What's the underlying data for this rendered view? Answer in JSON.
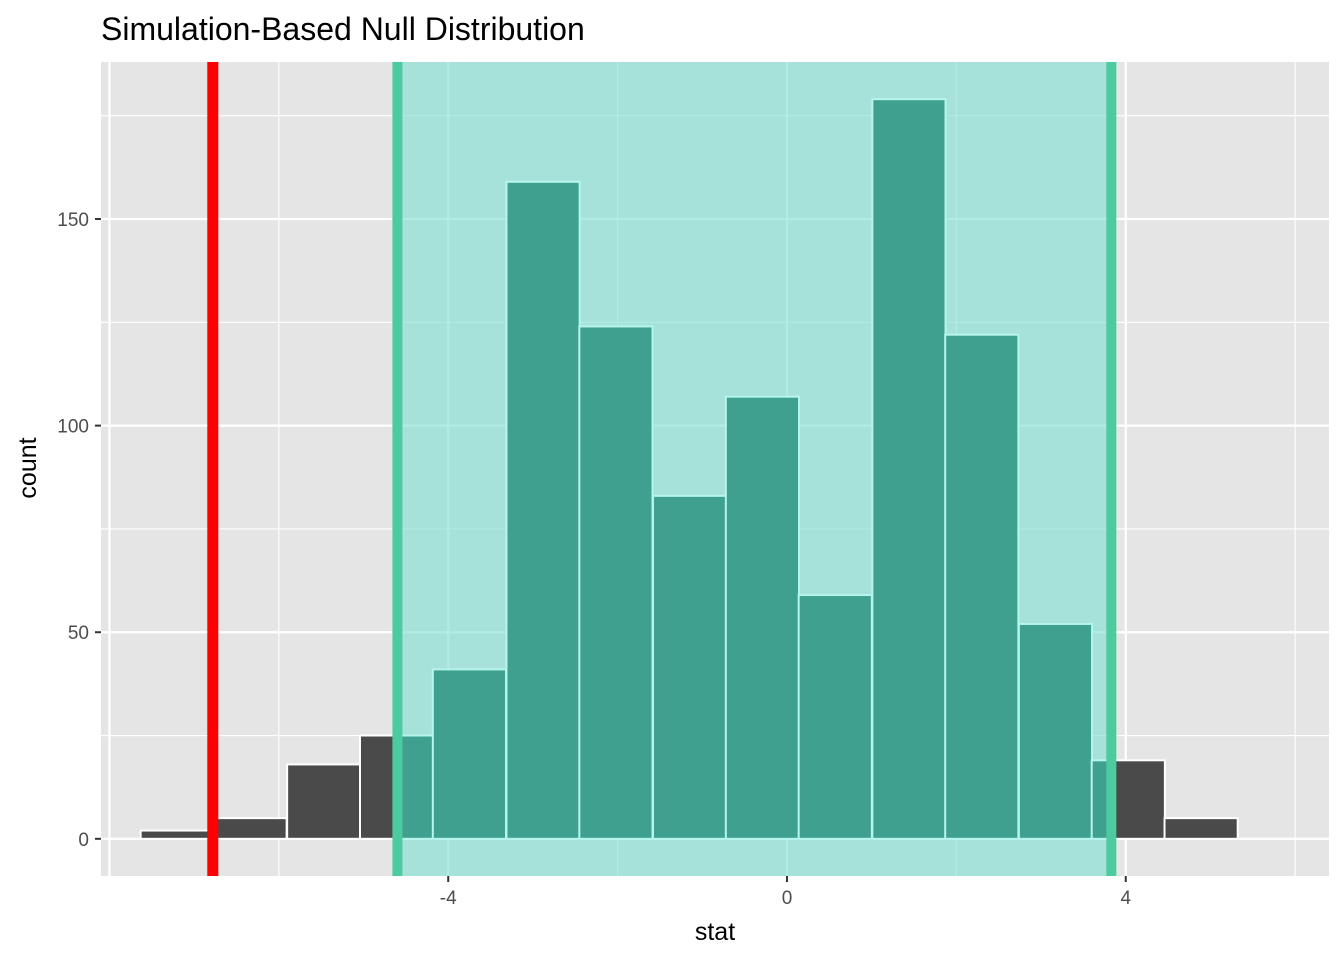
{
  "chart_data": {
    "type": "bar",
    "title": "Simulation-Based Null Distribution",
    "xlabel": "stat",
    "ylabel": "count",
    "xlim": [
      -8.1,
      6.4
    ],
    "ylim": [
      -9,
      188
    ],
    "x_ticks": [
      -4,
      0,
      4
    ],
    "x_tick_labels": [
      "-4",
      "0",
      "4"
    ],
    "y_ticks": [
      0,
      50,
      100,
      150
    ],
    "y_tick_labels": [
      "0",
      "50",
      "100",
      "150"
    ],
    "bin_width": 0.8639,
    "bins": [
      {
        "center": -7.2,
        "count": 2
      },
      {
        "center": -6.34,
        "count": 5
      },
      {
        "center": -5.47,
        "count": 18
      },
      {
        "center": -4.61,
        "count": 25
      },
      {
        "center": -3.75,
        "count": 41
      },
      {
        "center": -2.88,
        "count": 159
      },
      {
        "center": -2.02,
        "count": 124
      },
      {
        "center": -1.15,
        "count": 83
      },
      {
        "center": -0.29,
        "count": 107
      },
      {
        "center": 0.57,
        "count": 59
      },
      {
        "center": 1.44,
        "count": 179
      },
      {
        "center": 2.3,
        "count": 122
      },
      {
        "center": 3.17,
        "count": 52
      },
      {
        "center": 4.03,
        "count": 19
      },
      {
        "center": 4.89,
        "count": 5
      }
    ],
    "observed_stat": -6.78,
    "shaded_interval": [
      -4.6,
      3.83
    ],
    "colors": {
      "panel_background": "#e5e5e5",
      "grid": "#ffffff",
      "bar_fill": "#4a4a4a",
      "bar_outline": "#ffffff",
      "shade_fill": "#80e0d2",
      "shade_edge": "#4ecb9e",
      "shaded_bar_fill": "#40a090",
      "shaded_bar_outline": "#b5f5ec",
      "observed_line": "#ff0000"
    }
  }
}
